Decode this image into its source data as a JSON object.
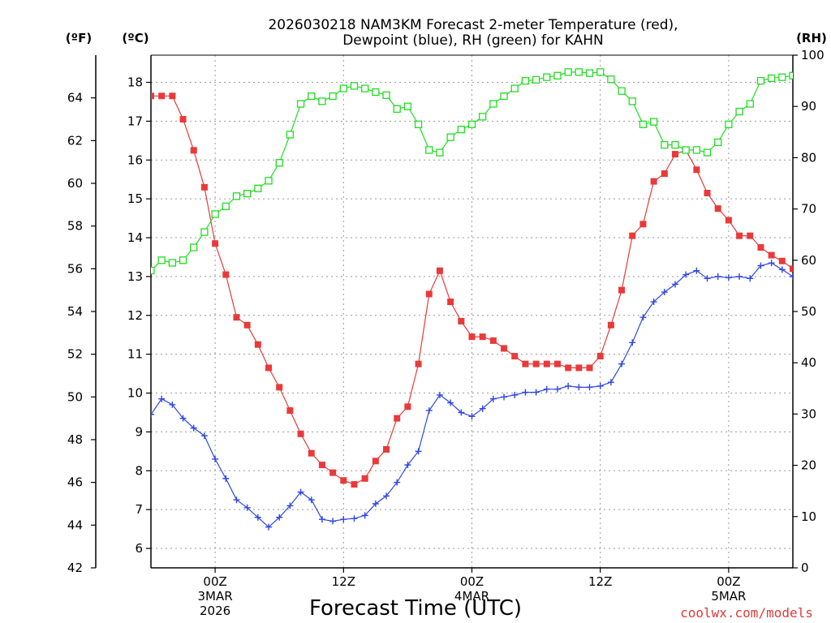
{
  "chart_data": {
    "type": "line",
    "title": {
      "line1": "2026030218 NAM3KM Forecast 2-meter Temperature (red),",
      "line2": "Dewpoint (blue), RH (green) for KAHN"
    },
    "xlabel": "Forecast Time (UTC)",
    "credit": "coolwx.com/models",
    "x_ticks": [
      {
        "hour": 6,
        "label": "00Z",
        "sub1": "3MAR",
        "sub2": "2026"
      },
      {
        "hour": 18,
        "label": "12Z",
        "sub1": "",
        "sub2": ""
      },
      {
        "hour": 30,
        "label": "00Z",
        "sub1": "4MAR",
        "sub2": ""
      },
      {
        "hour": 42,
        "label": "12Z",
        "sub1": "",
        "sub2": ""
      },
      {
        "hour": 54,
        "label": "00Z",
        "sub1": "5MAR",
        "sub2": ""
      }
    ],
    "x_range": [
      0,
      60
    ],
    "axes": {
      "fahrenheit": {
        "unit_label": "(ºF)",
        "range": [
          42,
          66
        ],
        "ticks": [
          42,
          44,
          46,
          48,
          50,
          52,
          54,
          56,
          58,
          60,
          62,
          64
        ]
      },
      "celsius": {
        "unit_label": "(ºC)",
        "range": [
          5.5,
          18.7
        ],
        "ticks": [
          6,
          7,
          8,
          9,
          10,
          11,
          12,
          13,
          14,
          15,
          16,
          17,
          18
        ]
      },
      "rh": {
        "unit_label": "(RH)",
        "range": [
          0,
          100
        ],
        "ticks": [
          0,
          10,
          20,
          30,
          40,
          50,
          60,
          70,
          80,
          90,
          100
        ]
      }
    },
    "grid": true,
    "series": [
      {
        "name": "2-meter Temperature",
        "color": "#e83a3a",
        "marker": "filled-square",
        "axis": "celsius",
        "x": [
          0,
          1,
          2,
          3,
          4,
          5,
          6,
          7,
          8,
          9,
          10,
          11,
          12,
          13,
          14,
          15,
          16,
          17,
          18,
          19,
          20,
          21,
          22,
          23,
          24,
          25,
          26,
          27,
          28,
          29,
          30,
          31,
          32,
          33,
          34,
          35,
          36,
          37,
          38,
          39,
          40,
          41,
          42,
          43,
          44,
          45,
          46,
          47,
          48,
          49,
          50,
          51,
          52,
          53,
          54,
          55,
          56,
          57,
          58,
          59,
          60
        ],
        "values": [
          17.65,
          17.65,
          17.65,
          17.05,
          16.25,
          15.3,
          13.85,
          13.05,
          11.95,
          11.75,
          11.25,
          10.65,
          10.15,
          9.55,
          8.95,
          8.45,
          8.15,
          7.95,
          7.75,
          7.65,
          7.8,
          8.25,
          8.55,
          9.35,
          9.65,
          10.75,
          12.55,
          13.15,
          12.35,
          11.85,
          11.45,
          11.45,
          11.35,
          11.15,
          10.95,
          10.75,
          10.75,
          10.75,
          10.75,
          10.65,
          10.65,
          10.65,
          10.95,
          11.75,
          12.65,
          14.05,
          14.35,
          15.45,
          15.65,
          16.15,
          16.25,
          15.75,
          15.15,
          14.75,
          14.45,
          14.05,
          14.05,
          13.75,
          13.55,
          13.4,
          13.2
        ]
      },
      {
        "name": "Dewpoint",
        "color": "#2e48e6",
        "marker": "plus",
        "axis": "celsius",
        "x": [
          0,
          1,
          2,
          3,
          4,
          5,
          6,
          7,
          8,
          9,
          10,
          11,
          12,
          13,
          14,
          15,
          16,
          17,
          18,
          19,
          20,
          21,
          22,
          23,
          24,
          25,
          26,
          27,
          28,
          29,
          30,
          31,
          32,
          33,
          34,
          35,
          36,
          37,
          38,
          39,
          40,
          41,
          42,
          43,
          44,
          45,
          46,
          47,
          48,
          49,
          50,
          51,
          52,
          53,
          54,
          55,
          56,
          57,
          58,
          59,
          60
        ],
        "values": [
          9.45,
          9.85,
          9.7,
          9.35,
          9.1,
          8.9,
          8.3,
          7.8,
          7.25,
          7.05,
          6.8,
          6.55,
          6.8,
          7.1,
          7.45,
          7.25,
          6.75,
          6.7,
          6.75,
          6.77,
          6.85,
          7.15,
          7.35,
          7.7,
          8.15,
          8.5,
          9.55,
          9.95,
          9.75,
          9.5,
          9.4,
          9.6,
          9.85,
          9.9,
          9.95,
          10.02,
          10.02,
          10.1,
          10.1,
          10.18,
          10.15,
          10.15,
          10.18,
          10.28,
          10.75,
          11.3,
          11.95,
          12.35,
          12.6,
          12.8,
          13.05,
          13.15,
          12.95,
          13.0,
          12.97,
          13.0,
          12.95,
          13.28,
          13.35,
          13.18,
          13.0
        ]
      },
      {
        "name": "RH",
        "color": "#22dc22",
        "marker": "open-square",
        "axis": "rh",
        "x": [
          0,
          1,
          2,
          3,
          4,
          5,
          6,
          7,
          8,
          9,
          10,
          11,
          12,
          13,
          14,
          15,
          16,
          17,
          18,
          19,
          20,
          21,
          22,
          23,
          24,
          25,
          26,
          27,
          28,
          29,
          30,
          31,
          32,
          33,
          34,
          35,
          36,
          37,
          38,
          39,
          40,
          41,
          42,
          43,
          44,
          45,
          46,
          47,
          48,
          49,
          50,
          51,
          52,
          53,
          54,
          55,
          56,
          57,
          58,
          59,
          60
        ],
        "values": [
          58,
          60,
          59.5,
          60,
          62.5,
          65.5,
          69,
          70.5,
          72.5,
          73,
          74,
          75.5,
          79,
          84.5,
          90.5,
          92,
          91,
          92,
          93.5,
          94,
          93.5,
          92.8,
          92.2,
          89.5,
          90,
          86.5,
          81.5,
          81,
          84,
          85.5,
          86.5,
          88,
          90.5,
          92,
          93.5,
          95,
          95.2,
          95.7,
          96,
          96.7,
          96.7,
          96.5,
          96.7,
          95.3,
          93,
          91,
          86.5,
          87,
          82.5,
          82.5,
          81.5,
          81.5,
          81,
          83,
          86.5,
          89,
          90.5,
          95,
          95.5,
          95.7,
          96
        ]
      }
    ]
  }
}
